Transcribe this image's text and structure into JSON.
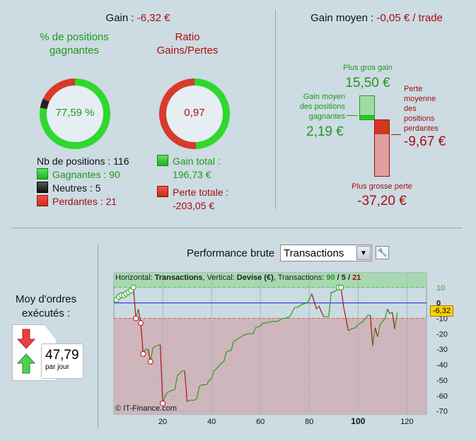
{
  "summary": {
    "gain_label": "Gain : ",
    "gain_value": "-6,32 €",
    "avg_gain_label": "Gain moyen : ",
    "avg_gain_value": "-0,05 € / trade"
  },
  "win_donut": {
    "title": "% de positions gagnantes",
    "value": "77,59 %",
    "wins": 90,
    "neutral": 5,
    "losses": 21
  },
  "ratio_donut": {
    "title": "Ratio Gains/Pertes",
    "value": "0,97",
    "gain_total": 196.73,
    "loss_total": 203.05
  },
  "positions": {
    "total": "Nb de positions : 116",
    "winning": "Gagnantes : 90",
    "neutral": "Neutres : 5",
    "losing": "Perdantes : 21"
  },
  "totals": {
    "gain_label": "Gain total :",
    "gain_value": "196,73 €",
    "loss_label": "Perte totale :",
    "loss_value": "-203,05 €"
  },
  "bars": {
    "max_gain_label": "Plus gros gain",
    "max_gain": "15,50 €",
    "avg_win_label": "Gain moyen des positions gagnantes",
    "avg_win": "2,19 €",
    "avg_loss_label": "Perte moyenne des positions perdantes",
    "avg_loss": "-9,67 €",
    "max_loss_label": "Plus grosse perte",
    "max_loss": "-37,20 €"
  },
  "orders": {
    "label": "Moy d'ordres exécutés :",
    "value": "47,79",
    "unit": "par jour"
  },
  "perf": {
    "title": "Performance brute",
    "select_value": "Transactions",
    "wrench_icon": "wrench-icon"
  },
  "chart_data": {
    "type": "line",
    "header_prefix": "Horizontal: ",
    "header_h": "Transactions",
    "header_mid": ", Vertical: ",
    "header_v": "Devise (€)",
    "header_tx": ", Transactions: ",
    "tx_win": "90",
    "tx_neu": "5",
    "tx_loss": "21",
    "sep": " / ",
    "watermark": "© IT-Finance.com",
    "current_label": "-6,32",
    "xlim": [
      0,
      128
    ],
    "ylim": [
      -72,
      19.5
    ],
    "xticks": [
      20,
      40,
      60,
      80,
      100,
      120
    ],
    "yticks": [
      10,
      0,
      -10,
      -20,
      -30,
      -40,
      -50,
      -60,
      -70
    ],
    "green_threshold": 10,
    "red_threshold": -10,
    "colors": {
      "up": "#2a9a1a",
      "down": "#b01010",
      "zero": "#2020e0"
    },
    "x": [
      1,
      2,
      3,
      4,
      5,
      6,
      7,
      8,
      9,
      10,
      11,
      12,
      13,
      14,
      15,
      16,
      17,
      19,
      20,
      21,
      22,
      23,
      25,
      26,
      28,
      29,
      30,
      31,
      33,
      34,
      35,
      36,
      38,
      39,
      40,
      41,
      43,
      44,
      45,
      46,
      47,
      48,
      49,
      50,
      52,
      53,
      55,
      57,
      58,
      60,
      61,
      62,
      65,
      67,
      69,
      70,
      72,
      73,
      74,
      75,
      77,
      79,
      80,
      81,
      82,
      83,
      84,
      85,
      86,
      88,
      89,
      90,
      91,
      92,
      93,
      94,
      95,
      96,
      97,
      99,
      100,
      102,
      103,
      104,
      105,
      106,
      107,
      108,
      109,
      110,
      111,
      112,
      113,
      114,
      115,
      116
    ],
    "y": [
      2,
      4,
      5,
      5,
      6,
      7,
      8,
      10,
      -10,
      -4,
      -13,
      -33,
      -30,
      -30,
      -38,
      -29,
      -28,
      -27,
      -65,
      -60,
      -58,
      -57,
      -56,
      -47,
      -44,
      -44,
      -64,
      -63,
      -63,
      -62,
      -54,
      -53,
      -53,
      -50,
      -49,
      -44,
      -41,
      -39,
      -38,
      -32,
      -31,
      -31,
      -25,
      -24,
      -22,
      -21,
      -20,
      -20,
      -16,
      -15,
      -13,
      -13,
      -12,
      -12,
      -10,
      -10,
      -9,
      -6,
      -3,
      -3,
      -1,
      0,
      2,
      6,
      1,
      -4,
      -2,
      -6,
      -9,
      -9,
      7,
      7,
      8,
      10,
      10,
      -2,
      -10,
      -18,
      -17,
      -16,
      -14,
      -12,
      -10,
      -8,
      -8,
      -28,
      -16,
      -22,
      -14,
      -12,
      -10,
      -4,
      -7,
      -6,
      -17,
      -6.32
    ],
    "win_markers": [
      1,
      2,
      3,
      4,
      5,
      6,
      7,
      8,
      92,
      93
    ],
    "loss_markers": [
      9,
      11,
      12,
      15,
      20
    ]
  }
}
